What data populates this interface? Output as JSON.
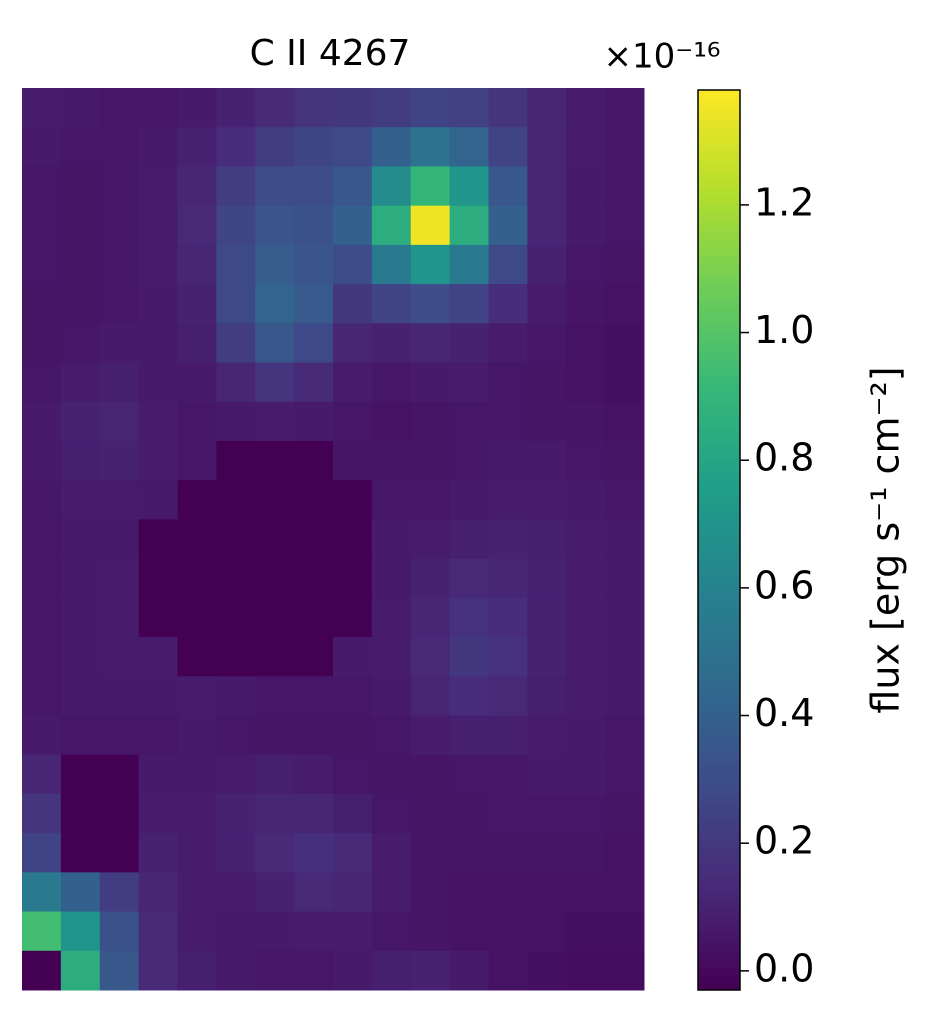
{
  "chart_data": {
    "type": "heatmap",
    "title": "C II 4267",
    "colormap": "viridis",
    "colorbar_label": "flux [erg s⁻¹ cm⁻²]",
    "colorbar_offset": "×10⁻¹⁶",
    "clim": [
      -0.03,
      1.38
    ],
    "cticks": [
      {
        "value": 0,
        "label": "0.0"
      },
      {
        "value": 0.2,
        "label": "0.2"
      },
      {
        "value": 0.4,
        "label": "0.4"
      },
      {
        "value": 0.6,
        "label": "0.6"
      },
      {
        "value": 0.8,
        "label": "0.8"
      },
      {
        "value": 1,
        "label": "1.0"
      },
      {
        "value": 1.2,
        "label": "1.2"
      }
    ],
    "z": [
      [
        0.08,
        0.07,
        0.06,
        0.06,
        0.07,
        0.1,
        0.14,
        0.18,
        0.2,
        0.22,
        0.25,
        0.24,
        0.18,
        0.12,
        0.08,
        0.06
      ],
      [
        0.07,
        0.06,
        0.06,
        0.07,
        0.1,
        0.15,
        0.22,
        0.26,
        0.28,
        0.4,
        0.5,
        0.42,
        0.25,
        0.12,
        0.08,
        0.06
      ],
      [
        0.06,
        0.05,
        0.06,
        0.08,
        0.12,
        0.22,
        0.3,
        0.3,
        0.35,
        0.65,
        0.9,
        0.7,
        0.35,
        0.12,
        0.07,
        0.06
      ],
      [
        0.06,
        0.05,
        0.06,
        0.08,
        0.13,
        0.26,
        0.34,
        0.32,
        0.4,
        0.85,
        1.35,
        0.85,
        0.4,
        0.12,
        0.07,
        0.06
      ],
      [
        0.06,
        0.05,
        0.06,
        0.08,
        0.12,
        0.28,
        0.38,
        0.34,
        0.3,
        0.55,
        0.7,
        0.55,
        0.28,
        0.1,
        0.06,
        0.05
      ],
      [
        0.05,
        0.05,
        0.06,
        0.07,
        0.1,
        0.28,
        0.42,
        0.36,
        0.2,
        0.25,
        0.3,
        0.25,
        0.15,
        0.08,
        0.05,
        0.04
      ],
      [
        0.05,
        0.06,
        0.07,
        0.07,
        0.09,
        0.22,
        0.35,
        0.28,
        0.12,
        0.1,
        0.12,
        0.1,
        0.08,
        0.06,
        0.04,
        0.03
      ],
      [
        0.06,
        0.08,
        0.09,
        0.07,
        0.07,
        0.12,
        0.18,
        0.14,
        0.08,
        0.06,
        0.07,
        0.08,
        0.06,
        0.05,
        0.04,
        0.03
      ],
      [
        0.07,
        0.1,
        0.11,
        0.08,
        0.06,
        0.07,
        0.08,
        0.07,
        0.06,
        0.04,
        0.05,
        0.06,
        0.06,
        0.05,
        0.05,
        0.04
      ],
      [
        0.07,
        0.09,
        0.1,
        0.08,
        0.06,
        -0.03,
        -0.03,
        -0.03,
        0.05,
        0.05,
        0.05,
        0.06,
        0.07,
        0.07,
        0.06,
        0.05
      ],
      [
        0.06,
        0.08,
        0.08,
        0.07,
        -0.03,
        -0.03,
        -0.03,
        -0.03,
        -0.03,
        0.06,
        0.06,
        0.07,
        0.08,
        0.08,
        0.07,
        0.06
      ],
      [
        0.06,
        0.07,
        0.07,
        -0.03,
        -0.03,
        -0.03,
        -0.03,
        -0.03,
        -0.03,
        0.07,
        0.08,
        0.09,
        0.1,
        0.09,
        0.08,
        0.07
      ],
      [
        0.06,
        0.07,
        0.08,
        -0.03,
        -0.03,
        -0.03,
        -0.03,
        -0.03,
        -0.03,
        0.07,
        0.1,
        0.13,
        0.12,
        0.1,
        0.08,
        0.07
      ],
      [
        0.06,
        0.07,
        0.08,
        -0.03,
        -0.03,
        -0.03,
        -0.03,
        -0.03,
        -0.03,
        0.08,
        0.12,
        0.17,
        0.15,
        0.1,
        0.08,
        0.07
      ],
      [
        0.06,
        0.07,
        0.08,
        0.08,
        -0.03,
        -0.03,
        -0.03,
        -0.03,
        0.07,
        0.08,
        0.13,
        0.2,
        0.17,
        0.1,
        0.08,
        0.07
      ],
      [
        0.06,
        0.07,
        0.07,
        0.07,
        0.08,
        0.07,
        0.06,
        0.06,
        0.06,
        0.07,
        0.11,
        0.15,
        0.13,
        0.09,
        0.08,
        0.07
      ],
      [
        0.07,
        0.06,
        0.06,
        0.06,
        0.07,
        0.06,
        0.05,
        0.05,
        0.05,
        0.06,
        0.08,
        0.09,
        0.09,
        0.08,
        0.07,
        0.06
      ],
      [
        0.12,
        -0.03,
        -0.03,
        0.07,
        0.07,
        0.08,
        0.09,
        0.08,
        0.06,
        0.05,
        0.05,
        0.06,
        0.06,
        0.07,
        0.07,
        0.06
      ],
      [
        0.18,
        -0.03,
        -0.03,
        0.08,
        0.08,
        0.1,
        0.12,
        0.12,
        0.09,
        0.06,
        0.05,
        0.05,
        0.06,
        0.06,
        0.06,
        0.05
      ],
      [
        0.25,
        -0.03,
        -0.03,
        0.1,
        0.08,
        0.1,
        0.14,
        0.16,
        0.14,
        0.08,
        0.05,
        0.05,
        0.05,
        0.05,
        0.05,
        0.04
      ],
      [
        0.55,
        0.4,
        0.22,
        0.12,
        0.08,
        0.08,
        0.1,
        0.13,
        0.12,
        0.08,
        0.05,
        0.04,
        0.04,
        0.04,
        0.04,
        0.04
      ],
      [
        0.95,
        0.7,
        0.32,
        0.14,
        0.08,
        0.07,
        0.07,
        0.08,
        0.08,
        0.06,
        0.05,
        0.04,
        0.04,
        0.04,
        0.03,
        0.03
      ],
      [
        -0.03,
        0.85,
        0.35,
        0.14,
        0.09,
        0.07,
        0.06,
        0.06,
        0.07,
        0.09,
        0.1,
        0.07,
        0.04,
        0.03,
        0.02,
        0.02
      ]
    ]
  }
}
